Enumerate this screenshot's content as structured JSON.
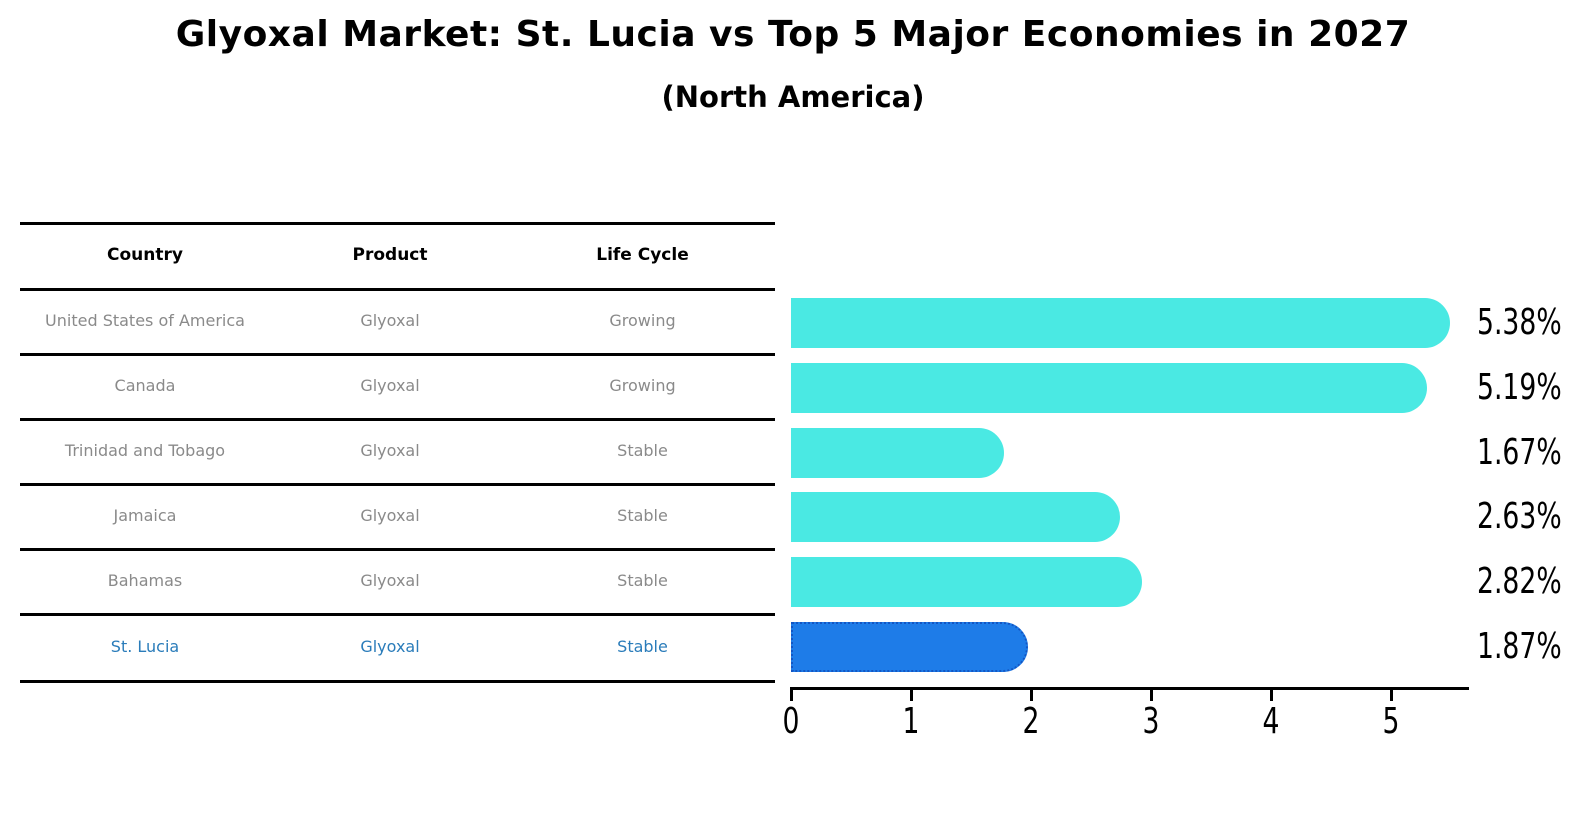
{
  "title": "Glyoxal Market: St. Lucia vs Top 5 Major Economies in 2027",
  "subtitle": "(North America)",
  "table": {
    "columns": [
      "Country",
      "Product",
      "Life Cycle"
    ],
    "rows": [
      {
        "country": "United States of America",
        "product": "Glyoxal",
        "life_cycle": "Growing"
      },
      {
        "country": "Canada",
        "product": "Glyoxal",
        "life_cycle": "Growing"
      },
      {
        "country": "Trinidad and Tobago",
        "product": "Glyoxal",
        "life_cycle": "Stable"
      },
      {
        "country": "Jamaica",
        "product": "Glyoxal",
        "life_cycle": "Stable"
      },
      {
        "country": "Bahamas",
        "product": "Glyoxal",
        "life_cycle": "Stable"
      },
      {
        "country": "St. Lucia",
        "product": "Glyoxal",
        "life_cycle": "Stable"
      }
    ],
    "highlighted_row": "St. Lucia"
  },
  "chart_data": {
    "type": "bar",
    "orientation": "horizontal",
    "title": "Glyoxal Market: St. Lucia vs Top 5 Major Economies in 2027",
    "subtitle": "(North America)",
    "xlabel": "",
    "ylabel": "",
    "categories": [
      "United States of America",
      "Canada",
      "Trinidad and Tobago",
      "Jamaica",
      "Bahamas",
      "St. Lucia"
    ],
    "values": [
      5.38,
      5.19,
      1.67,
      2.63,
      2.82,
      1.87
    ],
    "value_labels": [
      "5.38%",
      "5.19%",
      "1.67%",
      "2.63%",
      "2.82%",
      "1.87%"
    ],
    "x_ticks": [
      0,
      1,
      2,
      3,
      4,
      5
    ],
    "xlim": [
      0,
      5.64
    ],
    "grid": false,
    "legend": false,
    "highlight_index": 5,
    "bar_color": "#4ae9e3",
    "highlight_bar_color": "#1e7ce8",
    "highlight_border_color": "#1356c4",
    "highlight_text_color": "#2a7cba"
  }
}
